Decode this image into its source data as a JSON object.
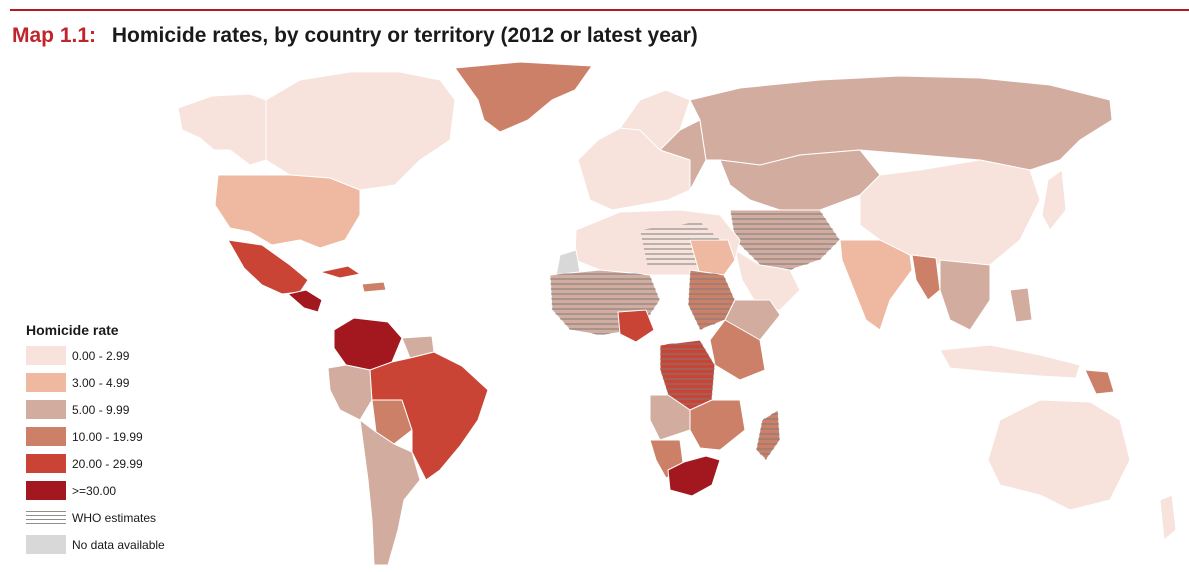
{
  "title": {
    "number": "Map 1.1:",
    "text": "Homicide rates, by country or territory (2012 or latest year)"
  },
  "legend": {
    "title": "Homicide rate",
    "items": [
      {
        "label": "0.00 - 2.99",
        "color": "#f7e2dc"
      },
      {
        "label": "3.00 - 4.99",
        "color": "#eeb9a0"
      },
      {
        "label": "5.00 - 9.99",
        "color": "#d1ac9f"
      },
      {
        "label": "10.00 - 19.99",
        "color": "#cc8068"
      },
      {
        "label": "20.00 - 29.99",
        "color": "#c94434"
      },
      {
        "label": ">=30.00",
        "color": "#a3171f"
      },
      {
        "label": "WHO estimates",
        "pattern": "horizontal-lines"
      },
      {
        "label": "No data available",
        "color": "#d8d8d8"
      }
    ]
  }
}
